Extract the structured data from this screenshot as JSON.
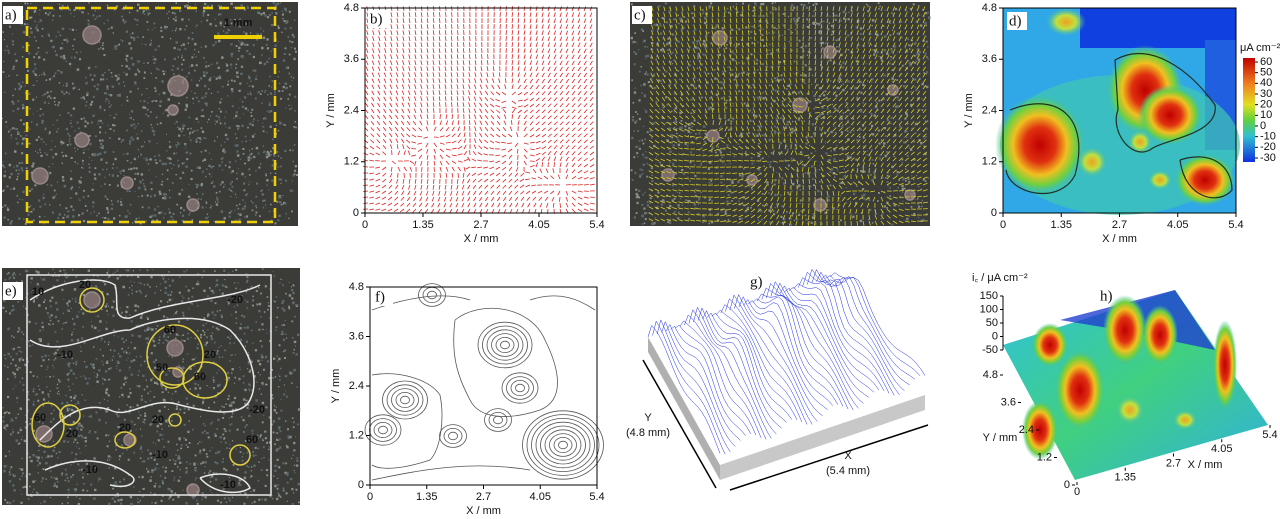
{
  "panels": [
    {
      "label": "a)",
      "scale_bar": "1 mm"
    },
    {
      "label": "b)",
      "x_label": "X / mm",
      "y_label": "Y / mm",
      "xlim": [
        0,
        5.4
      ],
      "ylim": [
        0,
        4.8
      ],
      "xticks": [
        0,
        1.35,
        2.7,
        4.05,
        5.4
      ],
      "yticks": [
        0,
        1.2,
        2.4,
        3.6,
        4.8
      ]
    },
    {
      "label": "c)"
    },
    {
      "label": "d)",
      "x_label": "X / mm",
      "y_label": "Y / mm",
      "xlim": [
        0,
        5.4
      ],
      "ylim": [
        0,
        4.8
      ],
      "xticks": [
        0,
        1.35,
        2.7,
        4.05,
        5.4
      ],
      "yticks": [
        0,
        1.2,
        2.4,
        3.6,
        4.8
      ],
      "colorbar_unit": "μA cm⁻²",
      "colorbar_ticks": [
        60,
        50,
        40,
        30,
        20,
        10,
        0,
        -10,
        -20,
        -30
      ]
    },
    {
      "label": "e)",
      "contour_labels": [
        "10",
        "20",
        "-20",
        "-10",
        "60",
        "20",
        "50",
        "60",
        "-20",
        "60",
        "20",
        "20",
        "20",
        "60",
        "-10",
        "-10",
        "-10"
      ]
    },
    {
      "label": "f)",
      "x_label": "X / mm",
      "y_label": "Y / mm",
      "xlim": [
        0,
        5.4
      ],
      "ylim": [
        0,
        4.8
      ],
      "xticks": [
        0,
        1.35,
        2.7,
        4.05,
        5.4
      ],
      "yticks": [
        0,
        1.2,
        2.4,
        3.6,
        4.8
      ]
    },
    {
      "label": "g)",
      "y_label": "Y",
      "y_extent": "(4.8 mm)",
      "x_label": "X",
      "x_extent": "(5.4 mm)"
    },
    {
      "label": "h)",
      "z_label": "i꜀ / μA cm⁻²",
      "zticks": [
        150,
        100,
        50,
        0,
        -50
      ],
      "yticks": [
        4.8,
        3.6,
        2.4,
        1.2,
        0
      ],
      "xticks": [
        0,
        1.35,
        2.7,
        4.05,
        5.4
      ],
      "y_label": "Y / mm",
      "x_label": "X / mm"
    }
  ]
}
